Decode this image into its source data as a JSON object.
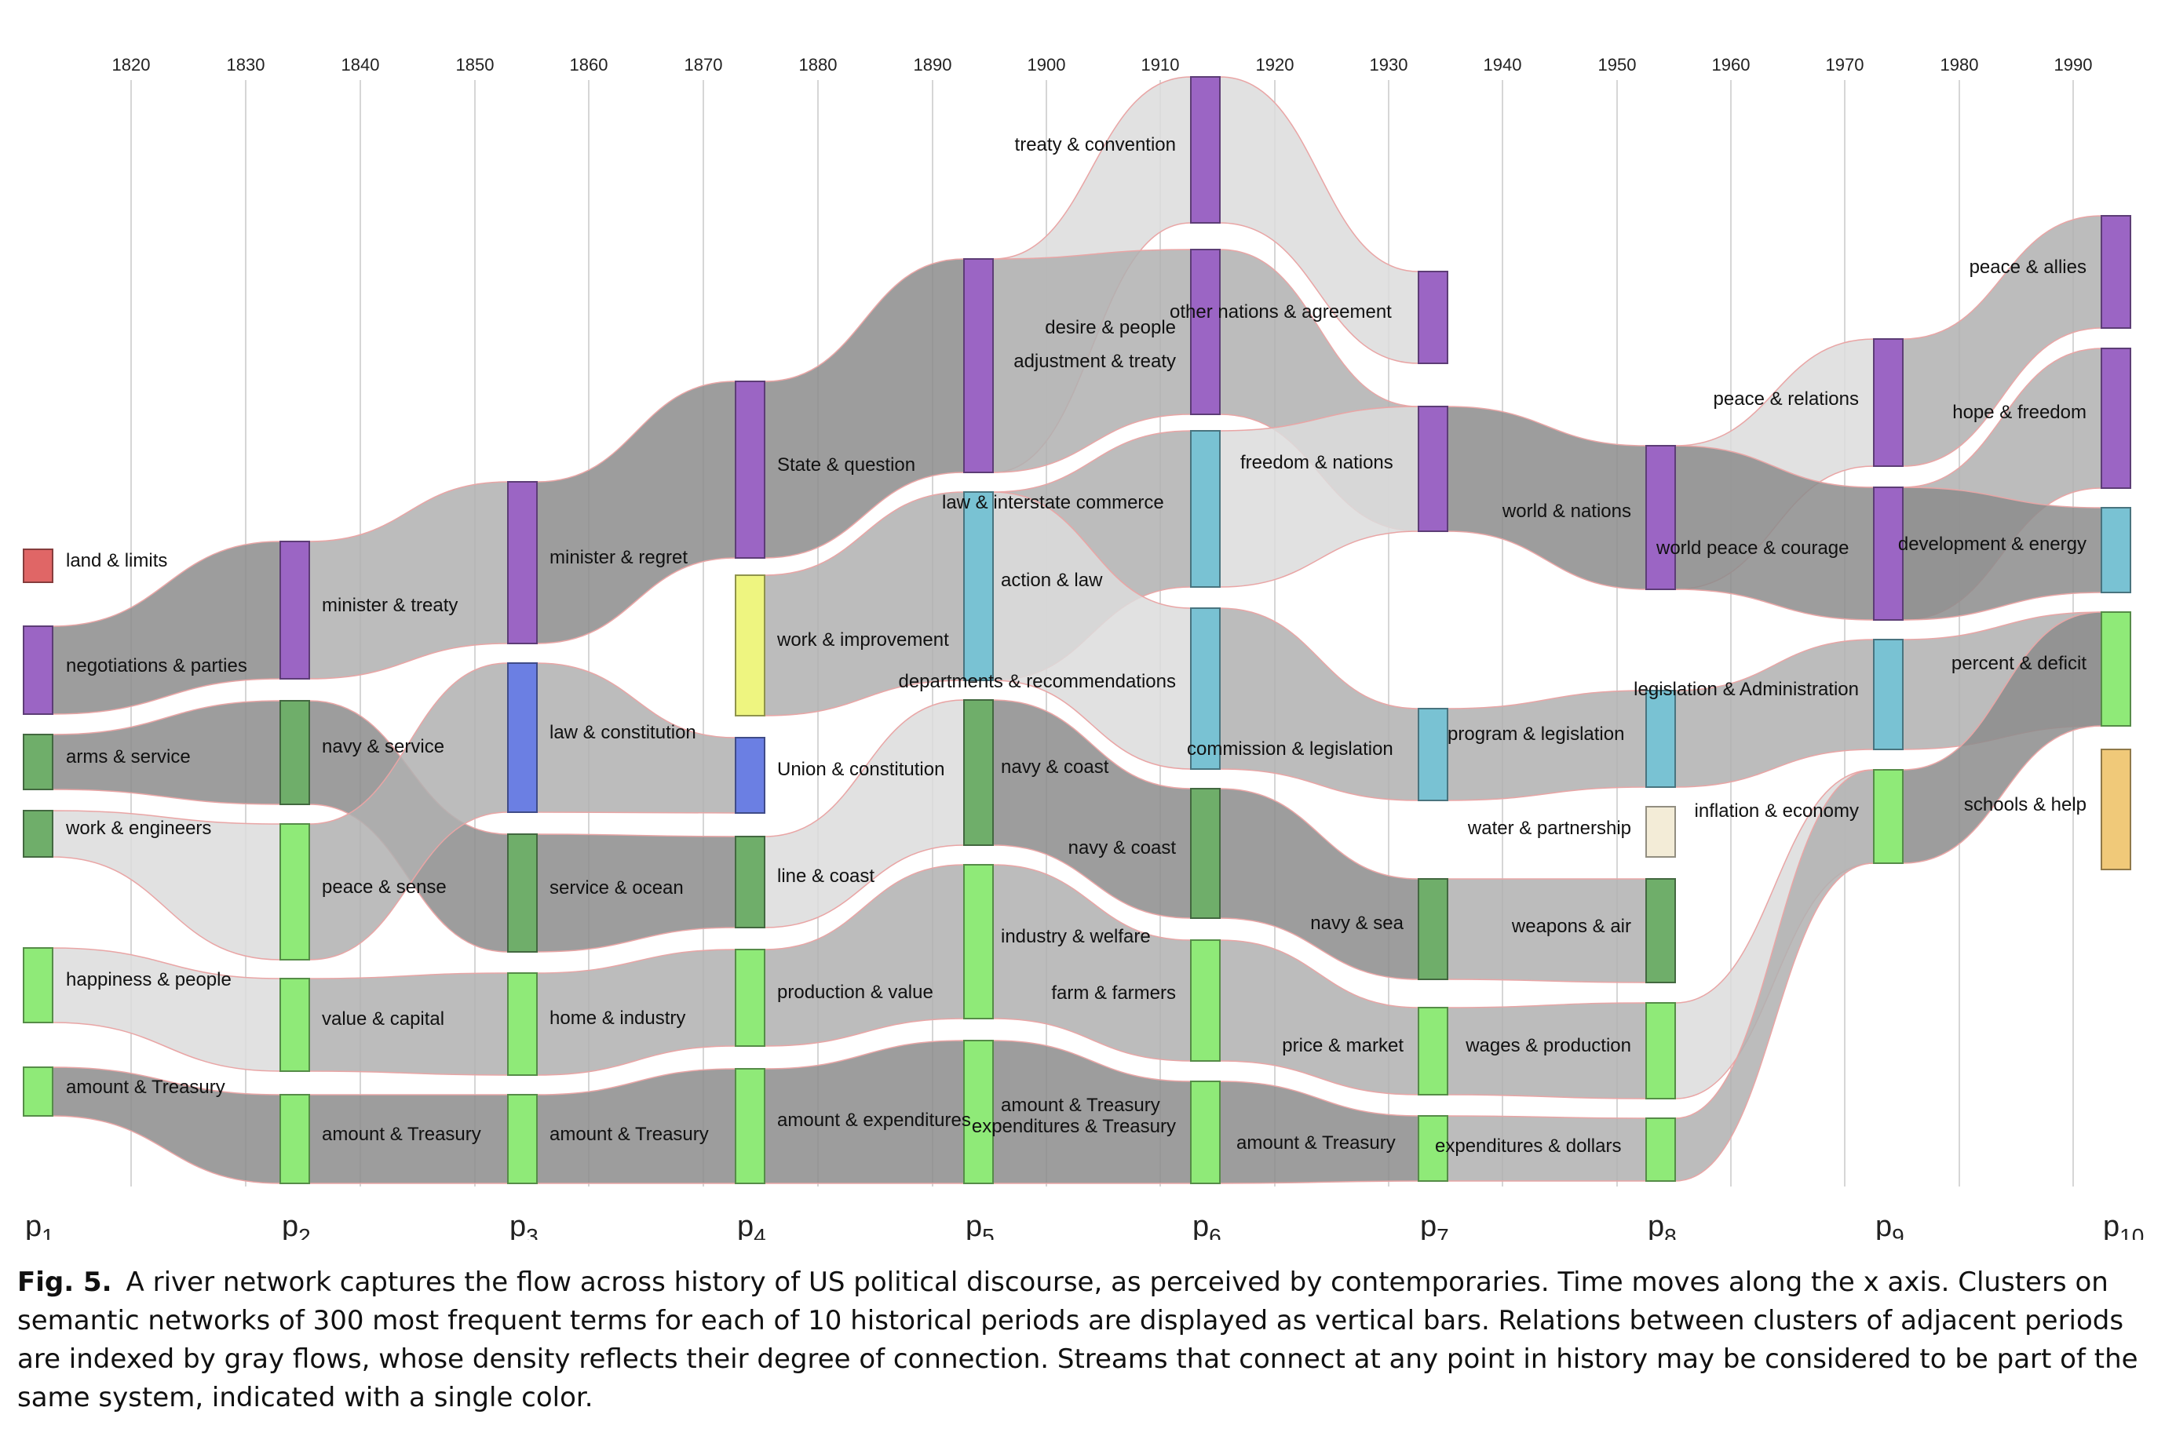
{
  "figure": {
    "years": [
      "1820",
      "1830",
      "1840",
      "1850",
      "1860",
      "1870",
      "1880",
      "1890",
      "1900",
      "1910",
      "1920",
      "1930",
      "1940",
      "1950",
      "1960",
      "1970",
      "1980",
      "1990"
    ],
    "periods": [
      {
        "name": "p",
        "sub": "1"
      },
      {
        "name": "p",
        "sub": "2"
      },
      {
        "name": "p",
        "sub": "3"
      },
      {
        "name": "p",
        "sub": "4"
      },
      {
        "name": "p",
        "sub": "5"
      },
      {
        "name": "p",
        "sub": "6"
      },
      {
        "name": "p",
        "sub": "7"
      },
      {
        "name": "p",
        "sub": "8"
      },
      {
        "name": "p",
        "sub": "9"
      },
      {
        "name": "p",
        "sub": "10"
      }
    ],
    "colors": {
      "red": "#e06666",
      "purple": "#9b65c4",
      "darkgreen": "#6fae6a",
      "lightgreen": "#8fea78",
      "blue": "#6b7fe3",
      "yellow": "#eef580",
      "teal": "#79c2d3",
      "cream": "#f3ecd7",
      "orange": "#f0c979",
      "flow_dark": "#8c8c8c",
      "flow_mid": "#b0b0b0",
      "flow_light": "#dcdcdc",
      "flow_outline": "#e9a5a5",
      "grid": "#d6d6d6"
    },
    "clusters": [
      {
        "id": "c1",
        "period": 1,
        "label": "land & limits",
        "color": "red"
      },
      {
        "id": "c2",
        "period": 1,
        "label": "negotiations & parties",
        "color": "purple"
      },
      {
        "id": "c3",
        "period": 1,
        "label": "arms & service",
        "color": "darkgreen"
      },
      {
        "id": "c4",
        "period": 1,
        "label": "work & engineers",
        "color": "darkgreen"
      },
      {
        "id": "c5",
        "period": 1,
        "label": "happiness & people",
        "color": "lightgreen"
      },
      {
        "id": "c6",
        "period": 1,
        "label": "amount & Treasury",
        "color": "lightgreen"
      },
      {
        "id": "c7",
        "period": 2,
        "label": "minister & treaty",
        "color": "purple"
      },
      {
        "id": "c8",
        "period": 2,
        "label": "navy & service",
        "color": "darkgreen"
      },
      {
        "id": "c9",
        "period": 2,
        "label": "peace & sense",
        "color": "lightgreen"
      },
      {
        "id": "c10",
        "period": 2,
        "label": "value & capital",
        "color": "lightgreen"
      },
      {
        "id": "c11",
        "period": 2,
        "label": "amount & Treasury",
        "color": "lightgreen"
      },
      {
        "id": "c12",
        "period": 3,
        "label": "minister & regret",
        "color": "purple"
      },
      {
        "id": "c13",
        "period": 3,
        "label": "law & constitution",
        "color": "blue"
      },
      {
        "id": "c14",
        "period": 3,
        "label": "service & ocean",
        "color": "darkgreen"
      },
      {
        "id": "c15",
        "period": 3,
        "label": "home & industry",
        "color": "lightgreen"
      },
      {
        "id": "c16",
        "period": 3,
        "label": "amount & Treasury",
        "color": "lightgreen"
      },
      {
        "id": "c17",
        "period": 4,
        "label": "State & question",
        "color": "purple"
      },
      {
        "id": "c18",
        "period": 4,
        "label": "work & improvement",
        "color": "yellow"
      },
      {
        "id": "c19",
        "period": 4,
        "label": "Union & constitution",
        "color": "blue"
      },
      {
        "id": "c20",
        "period": 4,
        "label": "line & coast",
        "color": "darkgreen"
      },
      {
        "id": "c21",
        "period": 4,
        "label": "production & value",
        "color": "lightgreen"
      },
      {
        "id": "c22",
        "period": 4,
        "label": "amount & expenditures",
        "color": "lightgreen"
      },
      {
        "id": "c23",
        "period": 5,
        "label": "desire & people",
        "color": "purple"
      },
      {
        "id": "c24",
        "period": 5,
        "label": "law & interstate commerce",
        "color": "teal"
      },
      {
        "id": "c25",
        "period": 5,
        "label": "navy & coast",
        "color": "darkgreen"
      },
      {
        "id": "c26",
        "period": 5,
        "label": "industry & welfare",
        "color": "lightgreen"
      },
      {
        "id": "c27",
        "period": 5,
        "label": "amount & Treasury",
        "color": "lightgreen"
      },
      {
        "id": "c28",
        "period": 6,
        "label": "treaty & convention",
        "color": "purple"
      },
      {
        "id": "c29",
        "period": 6,
        "label": "adjustment & treaty",
        "color": "purple"
      },
      {
        "id": "c30",
        "period": 6,
        "label": "action & law",
        "color": "teal"
      },
      {
        "id": "c31",
        "period": 6,
        "label": "departments & recommendations",
        "color": "teal"
      },
      {
        "id": "c32",
        "period": 6,
        "label": "navy & coast",
        "color": "darkgreen"
      },
      {
        "id": "c33",
        "period": 6,
        "label": "farm & farmers",
        "color": "lightgreen"
      },
      {
        "id": "c34",
        "period": 6,
        "label": "expenditures & Treasury",
        "color": "lightgreen"
      },
      {
        "id": "c35",
        "period": 7,
        "label": "other nations & agreement",
        "color": "purple"
      },
      {
        "id": "c36",
        "period": 7,
        "label": "freedom & nations",
        "color": "purple"
      },
      {
        "id": "c37",
        "period": 7,
        "label": "commission & legislation",
        "color": "teal"
      },
      {
        "id": "c38",
        "period": 7,
        "label": "navy & sea",
        "color": "darkgreen"
      },
      {
        "id": "c39",
        "period": 7,
        "label": "price & market",
        "color": "lightgreen"
      },
      {
        "id": "c40",
        "period": 7,
        "label": "amount & Treasury",
        "color": "lightgreen"
      },
      {
        "id": "c41",
        "period": 8,
        "label": "world & nations",
        "color": "purple"
      },
      {
        "id": "c42",
        "period": 8,
        "label": "program & legislation",
        "color": "teal"
      },
      {
        "id": "c43",
        "period": 8,
        "label": "water & partnership",
        "color": "cream"
      },
      {
        "id": "c44",
        "period": 8,
        "label": "weapons & air",
        "color": "darkgreen"
      },
      {
        "id": "c45",
        "period": 8,
        "label": "wages & production",
        "color": "lightgreen"
      },
      {
        "id": "c46",
        "period": 8,
        "label": "expenditures & dollars",
        "color": "lightgreen"
      },
      {
        "id": "c47",
        "period": 9,
        "label": "peace & relations",
        "color": "purple"
      },
      {
        "id": "c48",
        "period": 9,
        "label": "world peace & courage",
        "color": "purple"
      },
      {
        "id": "c49",
        "period": 9,
        "label": "legislation & Administration",
        "color": "teal"
      },
      {
        "id": "c50",
        "period": 9,
        "label": "inflation & economy",
        "color": "lightgreen"
      },
      {
        "id": "c51",
        "period": 10,
        "label": "peace & allies",
        "color": "purple"
      },
      {
        "id": "c52",
        "period": 10,
        "label": "hope & freedom",
        "color": "purple"
      },
      {
        "id": "c53",
        "period": 10,
        "label": "development & energy",
        "color": "teal"
      },
      {
        "id": "c54",
        "period": 10,
        "label": "percent & deficit",
        "color": "lightgreen"
      },
      {
        "id": "c55",
        "period": 10,
        "label": "schools & help",
        "color": "orange"
      }
    ],
    "flows": [
      {
        "from": "c2",
        "to": "c7",
        "shade": "flow_dark"
      },
      {
        "from": "c3",
        "to": "c8",
        "shade": "flow_dark"
      },
      {
        "from": "c4",
        "to": "c9",
        "shade": "flow_light"
      },
      {
        "from": "c5",
        "to": "c10",
        "shade": "flow_light"
      },
      {
        "from": "c6",
        "to": "c11",
        "shade": "flow_dark"
      },
      {
        "from": "c7",
        "to": "c12",
        "shade": "flow_mid"
      },
      {
        "from": "c8",
        "to": "c14",
        "shade": "flow_dark"
      },
      {
        "from": "c9",
        "to": "c13",
        "shade": "flow_mid"
      },
      {
        "from": "c10",
        "to": "c15",
        "shade": "flow_mid"
      },
      {
        "from": "c11",
        "to": "c16",
        "shade": "flow_dark"
      },
      {
        "from": "c12",
        "to": "c17",
        "shade": "flow_dark"
      },
      {
        "from": "c13",
        "to": "c19",
        "shade": "flow_mid"
      },
      {
        "from": "c14",
        "to": "c20",
        "shade": "flow_dark"
      },
      {
        "from": "c15",
        "to": "c21",
        "shade": "flow_mid"
      },
      {
        "from": "c16",
        "to": "c22",
        "shade": "flow_dark"
      },
      {
        "from": "c17",
        "to": "c23",
        "shade": "flow_dark"
      },
      {
        "from": "c18",
        "to": "c24",
        "shade": "flow_mid"
      },
      {
        "from": "c20",
        "to": "c25",
        "shade": "flow_light"
      },
      {
        "from": "c21",
        "to": "c26",
        "shade": "flow_mid"
      },
      {
        "from": "c22",
        "to": "c27",
        "shade": "flow_dark"
      },
      {
        "from": "c23",
        "to": "c28",
        "shade": "flow_light"
      },
      {
        "from": "c23",
        "to": "c29",
        "shade": "flow_mid"
      },
      {
        "from": "c24",
        "to": "c30",
        "shade": "flow_mid"
      },
      {
        "from": "c24",
        "to": "c31",
        "shade": "flow_light"
      },
      {
        "from": "c25",
        "to": "c32",
        "shade": "flow_dark"
      },
      {
        "from": "c26",
        "to": "c33",
        "shade": "flow_mid"
      },
      {
        "from": "c27",
        "to": "c34",
        "shade": "flow_dark"
      },
      {
        "from": "c28",
        "to": "c35",
        "shade": "flow_light"
      },
      {
        "from": "c29",
        "to": "c36",
        "shade": "flow_mid"
      },
      {
        "from": "c30",
        "to": "c36",
        "shade": "flow_light"
      },
      {
        "from": "c31",
        "to": "c37",
        "shade": "flow_mid"
      },
      {
        "from": "c32",
        "to": "c38",
        "shade": "flow_dark"
      },
      {
        "from": "c33",
        "to": "c39",
        "shade": "flow_mid"
      },
      {
        "from": "c34",
        "to": "c40",
        "shade": "flow_dark"
      },
      {
        "from": "c36",
        "to": "c41",
        "shade": "flow_dark"
      },
      {
        "from": "c37",
        "to": "c42",
        "shade": "flow_mid"
      },
      {
        "from": "c38",
        "to": "c44",
        "shade": "flow_mid"
      },
      {
        "from": "c39",
        "to": "c45",
        "shade": "flow_mid"
      },
      {
        "from": "c40",
        "to": "c46",
        "shade": "flow_mid"
      },
      {
        "from": "c41",
        "to": "c47",
        "shade": "flow_light"
      },
      {
        "from": "c41",
        "to": "c48",
        "shade": "flow_dark"
      },
      {
        "from": "c42",
        "to": "c49",
        "shade": "flow_mid"
      },
      {
        "from": "c45",
        "to": "c50",
        "shade": "flow_light"
      },
      {
        "from": "c46",
        "to": "c50",
        "shade": "flow_mid"
      },
      {
        "from": "c47",
        "to": "c51",
        "shade": "flow_mid"
      },
      {
        "from": "c48",
        "to": "c52",
        "shade": "flow_mid"
      },
      {
        "from": "c48",
        "to": "c53",
        "shade": "flow_dark"
      },
      {
        "from": "c49",
        "to": "c54",
        "shade": "flow_mid"
      },
      {
        "from": "c50",
        "to": "c54",
        "shade": "flow_dark"
      }
    ]
  },
  "caption": {
    "label": "Fig. 5.",
    "text": "A river network captures the flow across history of US political discourse, as perceived by contemporaries. Time moves along the x axis. Clusters on semantic networks of 300 most frequent terms for each of 10 historical periods are displayed as vertical bars. Relations between clusters of adjacent periods are indexed by gray flows, whose density reflects their degree of connection. Streams that connect at any point in history may be considered to be part of the same system, indicated with a single color."
  }
}
